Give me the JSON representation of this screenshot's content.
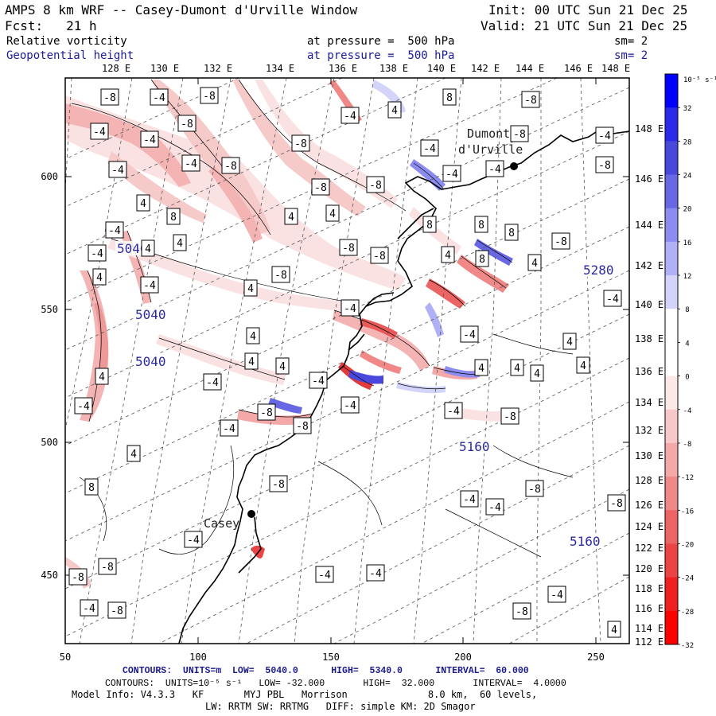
{
  "header": {
    "title": "AMPS 8 km WRF -- Casey-Dumont d'Urville Window",
    "init": "Init: 00 UTC Sun 21 Dec 25",
    "fcst": "Fcst:   21 h",
    "valid": "Valid: 21 UTC Sun 21 Dec 25",
    "field1_name": "Relative vorticity",
    "field1_level": "at pressure =  500 hPa",
    "field1_sm": "sm= 2",
    "field2_name": "Geopotential height",
    "field2_level": "at pressure =  500 hPa",
    "field2_sm": "sm= 2"
  },
  "colors": {
    "height_contour": "#1a1a8c",
    "coast": "#000000",
    "positive_vorticity": "#3c3cff",
    "negative_vorticity": "#e83030",
    "frame": "#000000"
  },
  "map": {
    "top_lon_labels": [
      "128 E",
      "130 E",
      "132 E",
      "134 E",
      "136 E",
      "138 E",
      "140 E",
      "142 E",
      "144 E",
      "146 E",
      "148 E"
    ],
    "right_lat_labels": [
      "148 E",
      "146 E",
      "144 E",
      "142 E",
      "140 E",
      "138 E",
      "136 E",
      "134 E",
      "132 E",
      "130 E",
      "128 E",
      "126 E",
      "124 E",
      "122 E",
      "120 E",
      "118 E",
      "116 E",
      "114 E",
      "112 E"
    ],
    "left_y_ticks": [
      "600",
      "550",
      "500",
      "450"
    ],
    "bottom_x_ticks": [
      "50",
      "100",
      "150",
      "200",
      "250"
    ],
    "stations": [
      {
        "name": "Dumont d'Urville",
        "label_line1": "Dumont",
        "label_line2": "d'Urville"
      },
      {
        "name": "Casey",
        "label_line1": "Casey"
      }
    ],
    "height_labels": [
      "5040",
      "5040",
      "5040",
      "5160",
      "5160",
      "5280"
    ],
    "vorticity_labels": [
      "-8",
      "-4",
      "-8",
      "-4",
      "-8",
      "-4",
      "4",
      "8",
      "-8",
      "-4",
      "-4",
      "-8",
      "-8",
      "-4",
      "-8",
      "-8",
      "-4",
      "-4",
      "-4",
      "-8",
      "-4",
      "-8",
      "4",
      "8",
      "4",
      "4",
      "8",
      "8",
      "8",
      "-8",
      "4",
      "8",
      "4",
      "-8",
      "-8",
      "-4",
      "4",
      "4",
      "-4",
      "4",
      "-4",
      "-8",
      "4",
      "-4",
      "-4",
      "4",
      "-4",
      "4",
      "4",
      "4",
      "4",
      "4",
      "4",
      "4",
      "4",
      "-4",
      "-4",
      "-4"
    ]
  },
  "colorbar": {
    "unit": "10⁻⁵ s⁻¹",
    "labels": [
      "32",
      "28",
      "24",
      "20",
      "16",
      "12",
      "8",
      "4",
      "0",
      "-4",
      "-8",
      "-12",
      "-16",
      "-20",
      "-24",
      "-28",
      "-32"
    ],
    "colors": [
      "#0000ff",
      "#2a2ae8",
      "#4848dc",
      "#6868e4",
      "#8c8cf0",
      "#b0b0f6",
      "#d4d4fa",
      "#ffffff",
      "#ffffff",
      "#fde8e8",
      "#f8c8c8",
      "#f4a8a8",
      "#f08888",
      "#ec6464",
      "#ec4444",
      "#f02020",
      "#ff0000"
    ]
  },
  "footer": {
    "line1": "CONTOURS:  UNITS=m  LOW=  5040.0      HIGH=  5340.0      INTERVAL=  60.000",
    "line2": "CONTOURS:  UNITS=10⁻⁵ s⁻¹   LOW= -32.000       HIGH=  32.000       INTERVAL=  4.0000",
    "line3": "Model Info: V4.3.3   KF       MYJ PBL   Morrison              8.0 km,  60 levels,",
    "line4": "LW: RRTM SW: RRTMG   DIFF: simple KM: 2D Smagor"
  }
}
